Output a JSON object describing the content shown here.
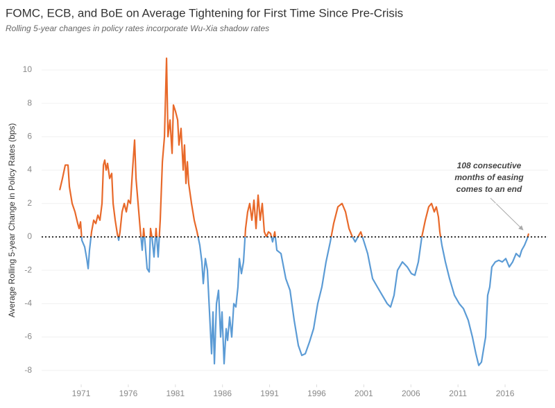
{
  "chart_data": {
    "type": "line",
    "title": "FOMC, ECB, and BoE on Average Tightening for First Time Since Pre-Crisis",
    "subtitle": "Rolling 5-year changes in policy rates incorporate Wu-Xia shadow rates",
    "y_label": "Average Rolling 5-year Change in Policy Rates (bps)",
    "annotation": [
      "108 consecutive",
      "months of easing",
      "comes to an end"
    ],
    "color_above": "#e8692a",
    "color_below": "#5b9bd5",
    "zero_line": true,
    "grid": true,
    "xlim": [
      1966.8,
      2020.56
    ],
    "ylim": [
      -8.84,
      10.87
    ],
    "xticks": [
      1971,
      1976,
      1981,
      1986,
      1991,
      1996,
      2001,
      2006,
      2011,
      2016
    ],
    "yticks": [
      -8,
      -6,
      -4,
      -2,
      0,
      2,
      4,
      6,
      8,
      10
    ],
    "x": [
      1968.72,
      1969.01,
      1969.31,
      1969.6,
      1969.75,
      1970.04,
      1970.34,
      1970.63,
      1970.78,
      1970.93,
      1971.07,
      1971.37,
      1971.59,
      1971.74,
      1971.88,
      1972.1,
      1972.33,
      1972.55,
      1972.77,
      1972.99,
      1973.21,
      1973.36,
      1973.5,
      1973.65,
      1973.8,
      1974.02,
      1974.24,
      1974.39,
      1974.61,
      1974.83,
      1974.98,
      1975.12,
      1975.34,
      1975.57,
      1975.79,
      1976.01,
      1976.23,
      1976.45,
      1976.67,
      1976.82,
      1977.04,
      1977.26,
      1977.48,
      1977.63,
      1977.77,
      1978.0,
      1978.22,
      1978.36,
      1978.51,
      1978.73,
      1978.95,
      1979.17,
      1979.39,
      1979.62,
      1979.84,
      1980.06,
      1980.21,
      1980.43,
      1980.65,
      1980.79,
      1981.02,
      1981.24,
      1981.38,
      1981.6,
      1981.83,
      1981.97,
      1982.12,
      1982.27,
      1982.41,
      1982.71,
      1983.0,
      1983.3,
      1983.59,
      1983.81,
      1983.96,
      1984.18,
      1984.4,
      1984.62,
      1984.84,
      1984.99,
      1985.14,
      1985.36,
      1985.58,
      1985.8,
      1985.95,
      1986.17,
      1986.39,
      1986.54,
      1986.76,
      1986.98,
      1987.2,
      1987.42,
      1987.64,
      1987.79,
      1988.01,
      1988.23,
      1988.45,
      1988.67,
      1988.89,
      1989.12,
      1989.34,
      1989.56,
      1989.78,
      1990.0,
      1990.22,
      1990.44,
      1990.66,
      1990.88,
      1991.1,
      1991.32,
      1991.55,
      1991.77,
      1992.21,
      1992.72,
      1993.17,
      1993.61,
      1994.05,
      1994.42,
      1994.79,
      1995.23,
      1995.67,
      1996.11,
      1996.55,
      1996.99,
      1997.44,
      1997.8,
      1998.25,
      1998.69,
      1999.06,
      1999.43,
      1999.79,
      2000.09,
      2000.38,
      2000.68,
      2000.97,
      2001.41,
      2001.93,
      2002.44,
      2002.96,
      2003.48,
      2003.84,
      2004.21,
      2004.58,
      2005.1,
      2005.61,
      2006.05,
      2006.42,
      2006.79,
      2007.16,
      2007.53,
      2007.89,
      2008.19,
      2008.48,
      2008.7,
      2008.92,
      2009.07,
      2009.29,
      2009.66,
      2010.1,
      2010.62,
      2011.13,
      2011.58,
      2012.09,
      2012.53,
      2012.9,
      2013.2,
      2013.49,
      2013.78,
      2013.93,
      2014.15,
      2014.37,
      2014.59,
      2014.96,
      2015.33,
      2015.7,
      2016.07,
      2016.44,
      2016.8,
      2017.17,
      2017.54,
      2017.76,
      2018.06,
      2018.35,
      2018.5
    ],
    "values": [
      2.8,
      3.5,
      4.3,
      4.3,
      3.0,
      2.0,
      1.5,
      0.8,
      0.5,
      0.9,
      -0.2,
      -0.6,
      -1.3,
      -1.9,
      -0.8,
      0.3,
      1.0,
      0.8,
      1.3,
      1.0,
      2.0,
      4.3,
      4.6,
      4.0,
      4.4,
      3.5,
      3.8,
      2.0,
      1.0,
      0.2,
      -0.2,
      0.3,
      1.5,
      2.0,
      1.5,
      2.2,
      2.0,
      4.0,
      5.8,
      3.5,
      2.0,
      0.5,
      -0.8,
      0.5,
      -0.3,
      -1.9,
      -2.1,
      0.5,
      0.0,
      -1.2,
      0.5,
      -1.2,
      1.0,
      4.5,
      6.0,
      10.7,
      6.0,
      7.0,
      5.0,
      7.9,
      7.5,
      7.0,
      5.5,
      6.5,
      4.0,
      5.5,
      3.2,
      4.5,
      3.2,
      2.0,
      1.0,
      0.3,
      -0.5,
      -1.5,
      -2.8,
      -1.3,
      -2.0,
      -4.5,
      -7.0,
      -4.5,
      -7.6,
      -4.0,
      -3.2,
      -6.0,
      -4.5,
      -7.6,
      -5.5,
      -6.2,
      -4.8,
      -6.0,
      -4.0,
      -4.2,
      -3.0,
      -1.3,
      -2.2,
      -1.5,
      0.5,
      1.5,
      2.0,
      1.0,
      2.2,
      0.5,
      2.5,
      1.0,
      2.0,
      0.3,
      0.0,
      0.3,
      0.2,
      -0.3,
      0.3,
      -0.8,
      -1.0,
      -2.5,
      -3.2,
      -5.0,
      -6.5,
      -7.1,
      -7.0,
      -6.3,
      -5.5,
      -4.0,
      -3.0,
      -1.5,
      -0.3,
      0.8,
      1.8,
      2.0,
      1.5,
      0.5,
      0.0,
      -0.3,
      0.0,
      0.3,
      -0.2,
      -1.0,
      -2.5,
      -3.0,
      -3.5,
      -4.0,
      -4.2,
      -3.5,
      -2.0,
      -1.5,
      -1.8,
      -2.2,
      -2.3,
      -1.5,
      0.0,
      1.0,
      1.8,
      2.0,
      1.5,
      1.8,
      1.2,
      0.3,
      -0.5,
      -1.5,
      -2.5,
      -3.5,
      -4.0,
      -4.3,
      -5.0,
      -6.0,
      -7.0,
      -7.7,
      -7.5,
      -6.5,
      -6.0,
      -3.5,
      -3.0,
      -1.8,
      -1.5,
      -1.4,
      -1.5,
      -1.3,
      -1.8,
      -1.5,
      -1.0,
      -1.2,
      -0.8,
      -0.5,
      -0.1,
      0.2
    ]
  }
}
